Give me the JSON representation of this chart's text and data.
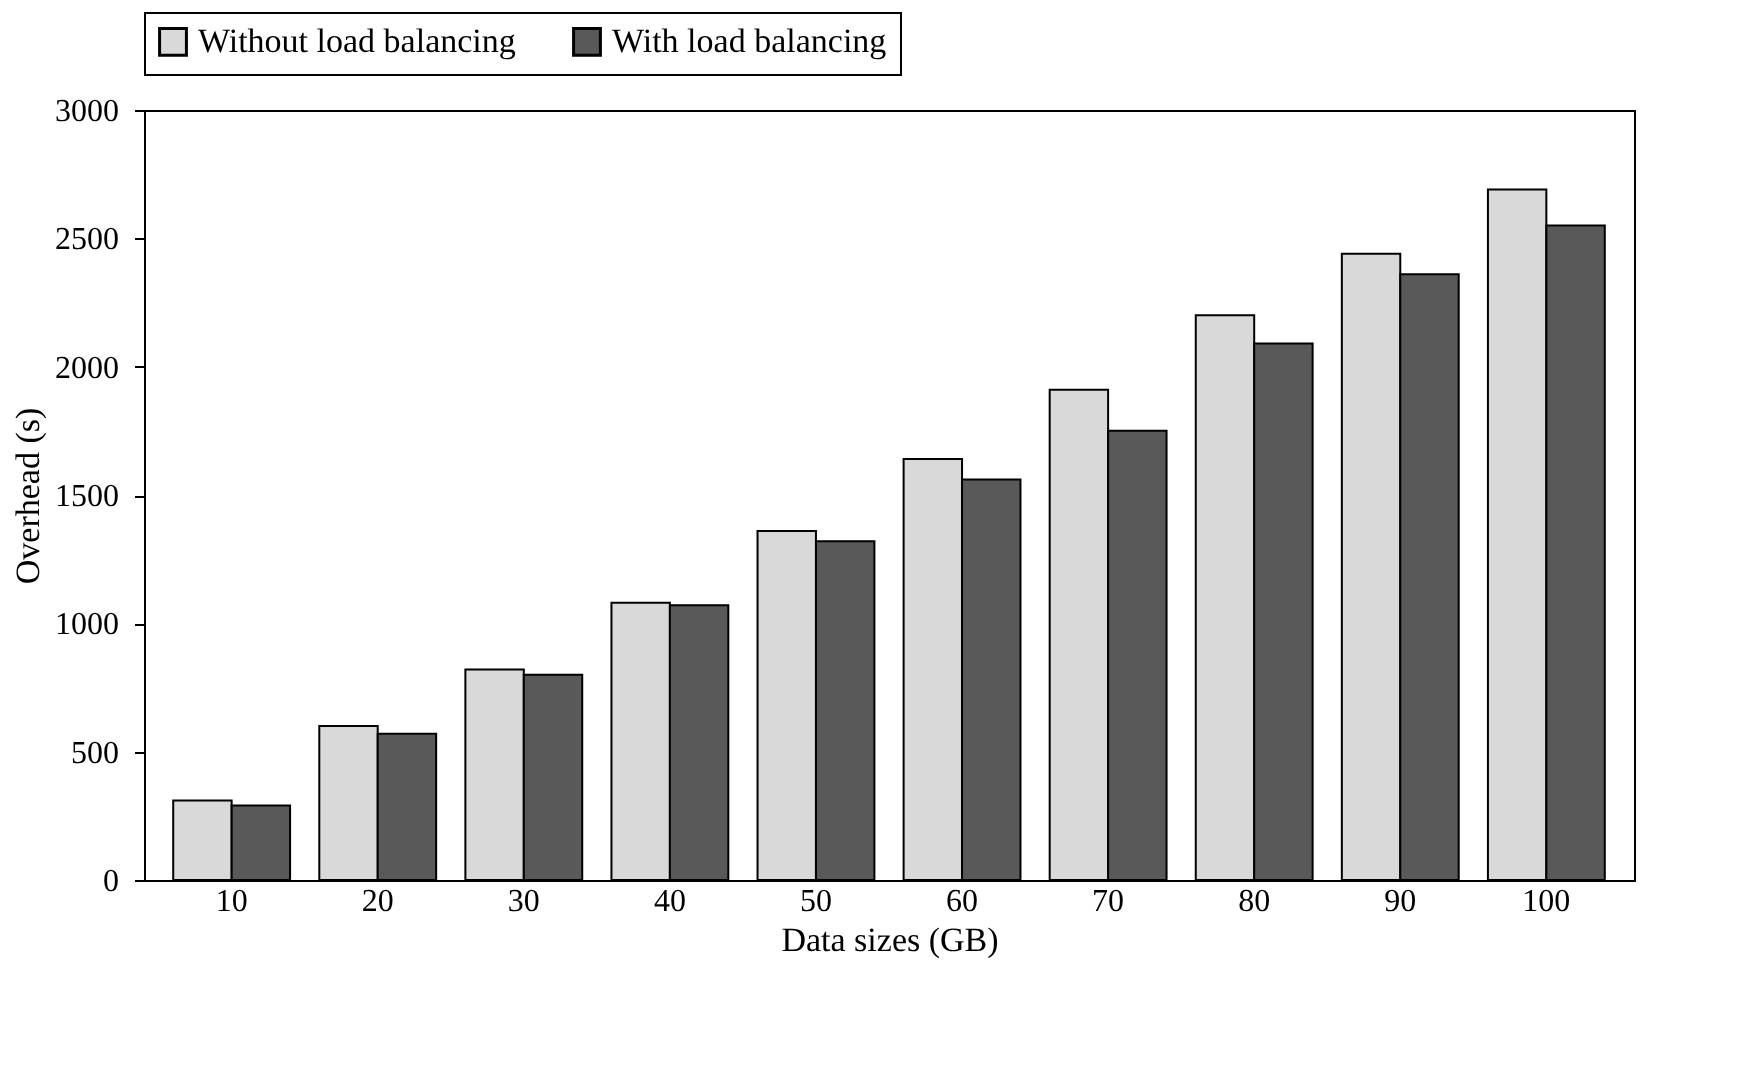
{
  "chart_data": {
    "type": "bar",
    "xlabel": "Data sizes (GB)",
    "ylabel": "Overhead (s)",
    "categories": [
      "10",
      "20",
      "30",
      "40",
      "50",
      "60",
      "70",
      "80",
      "90",
      "100"
    ],
    "series": [
      {
        "name": "Without load balancing",
        "color": "#d9d9d9",
        "values": [
          310,
          600,
          820,
          1080,
          1360,
          1640,
          1910,
          2200,
          2440,
          2690
        ]
      },
      {
        "name": "With load balancing",
        "color": "#595959",
        "values": [
          290,
          570,
          800,
          1070,
          1320,
          1560,
          1750,
          2090,
          2360,
          2550
        ]
      }
    ],
    "ylim": [
      0,
      3000
    ],
    "yticks": [
      0,
      500,
      1000,
      1500,
      2000,
      2500,
      3000
    ],
    "grid": false,
    "legend": "top"
  }
}
